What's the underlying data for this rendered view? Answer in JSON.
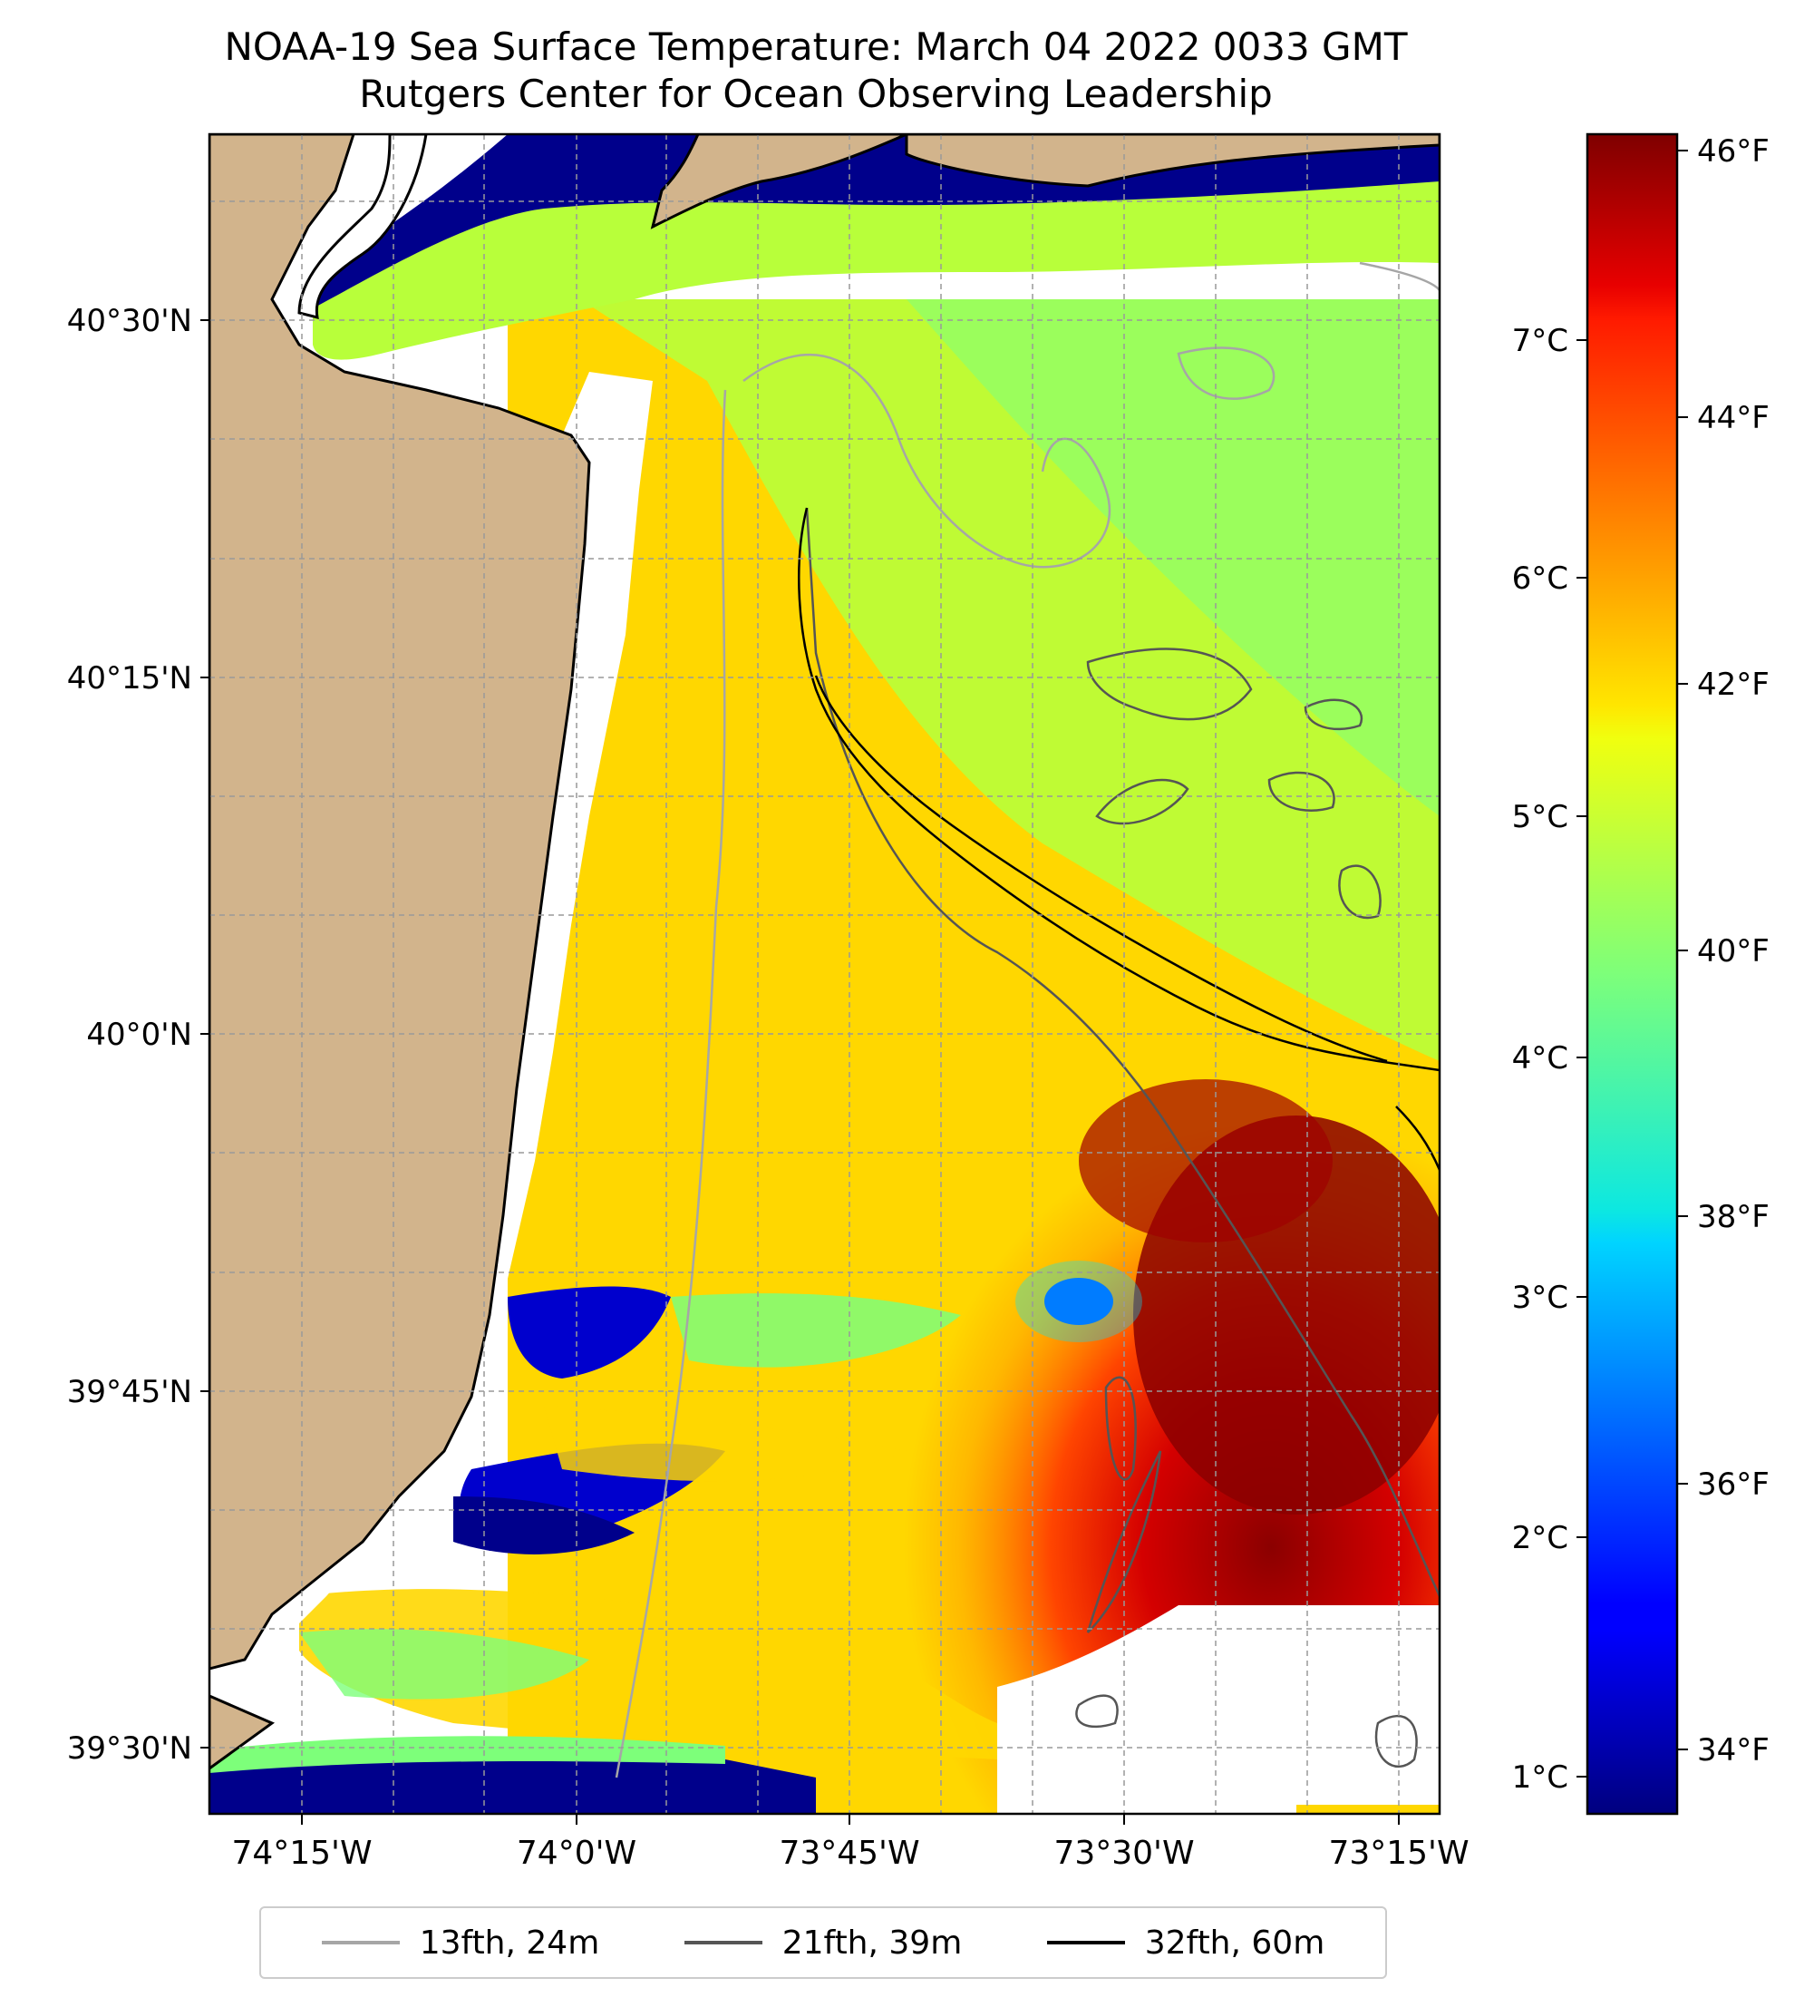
{
  "title": "NOAA-19 Sea Surface Temperature: March 04 2022 0033 GMT",
  "subtitle": "Rutgers Center for Ocean Observing Leadership",
  "colors": {
    "land": "#d2b48c",
    "no_data": "#ffffff",
    "contour_13": "#a6a6a6",
    "contour_21": "#555555",
    "contour_32": "#000000",
    "grid": "#999999"
  },
  "map": {
    "lat_ticks": [
      "40°30'N",
      "40°15'N",
      "40°0'N",
      "39°45'N",
      "39°30'N"
    ],
    "lon_ticks": [
      "74°15'W",
      "74°0'W",
      "73°45'W",
      "73°30'W",
      "73°15'W"
    ]
  },
  "colorbar": {
    "celsius_ticks": [
      "7°C",
      "6°C",
      "5°C",
      "4°C",
      "3°C",
      "2°C",
      "1°C"
    ],
    "fahrenheit_ticks": [
      "46°F",
      "44°F",
      "42°F",
      "40°F",
      "38°F",
      "36°F",
      "34°F"
    ],
    "colormap": "jet",
    "range_f": [
      33.5,
      46.2
    ]
  },
  "legend": {
    "items": [
      {
        "label": "13fth, 24m",
        "color": "#a6a6a6"
      },
      {
        "label": "21fth, 39m",
        "color": "#555555"
      },
      {
        "label": "32fth, 60m",
        "color": "#000000"
      }
    ]
  }
}
